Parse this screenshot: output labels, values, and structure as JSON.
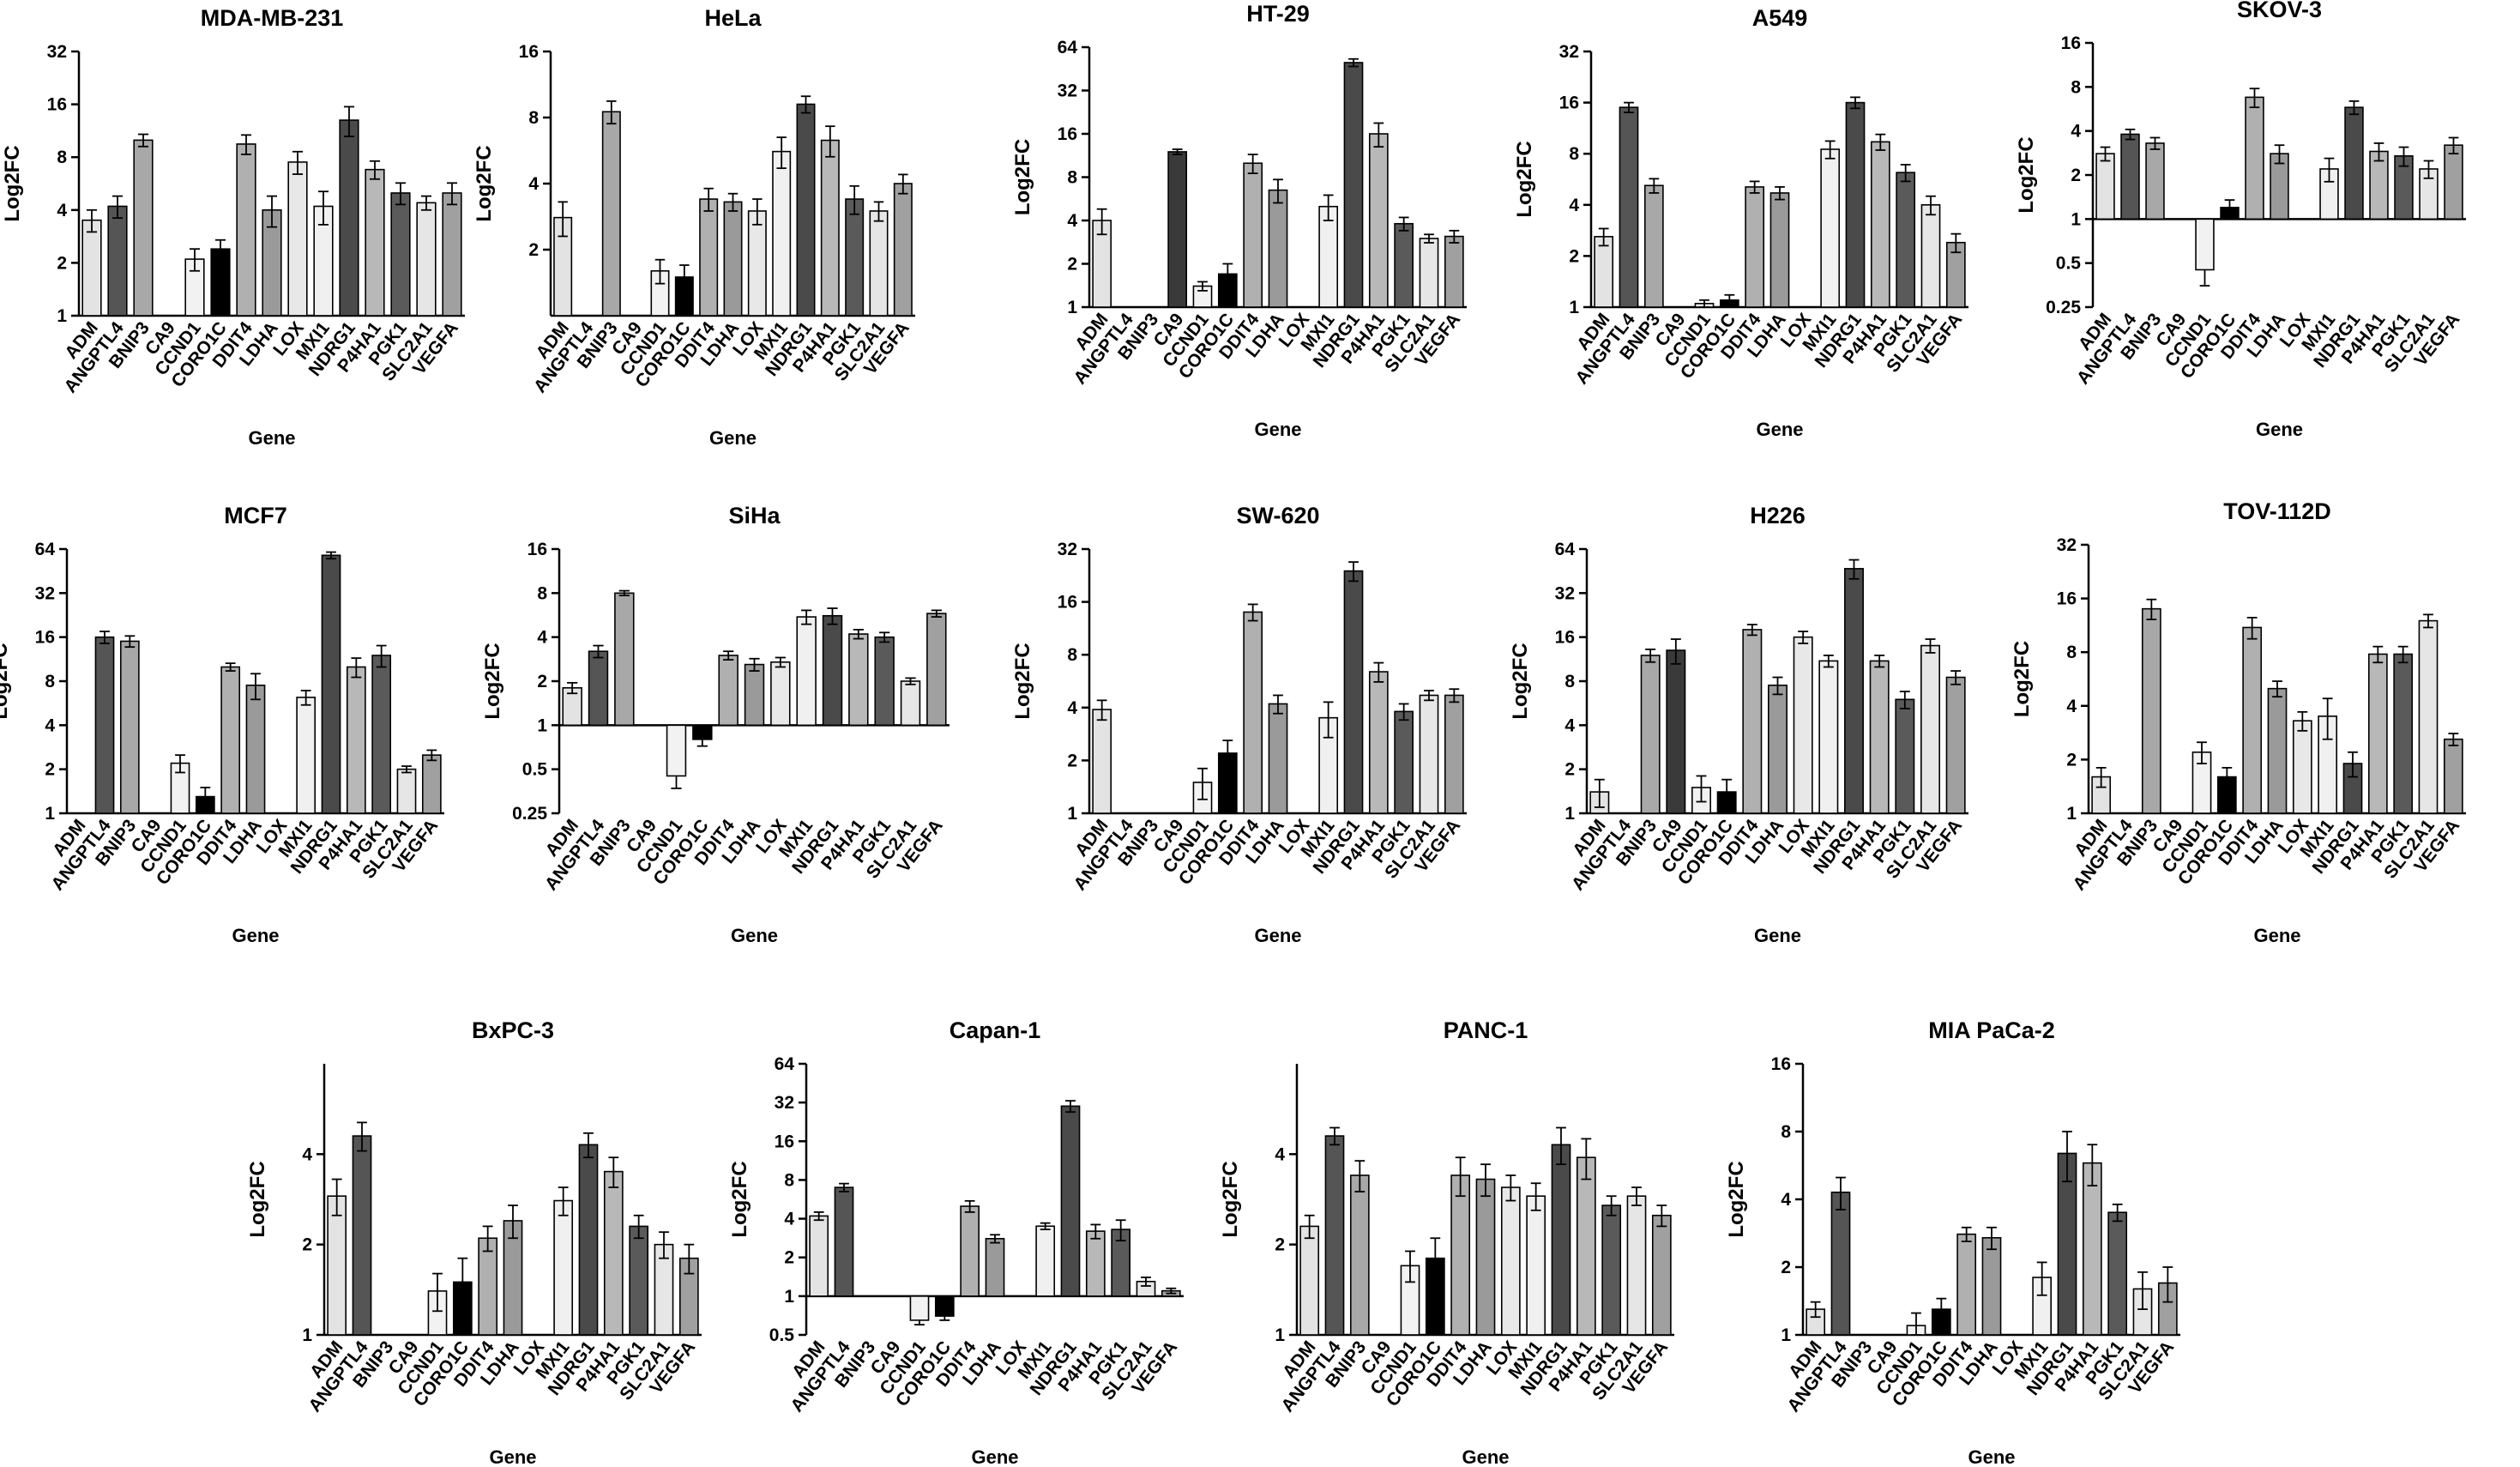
{
  "figure": {
    "gene_order": [
      "ADM",
      "ANGPTL4",
      "BNIP3",
      "CA9",
      "CCND1",
      "CORO1C",
      "DDIT4",
      "LDHA",
      "LOX",
      "MXI1",
      "NDRG1",
      "P4HA1",
      "PGK1",
      "SLC2A1",
      "VEGFA"
    ],
    "shades": {
      "ADM": "#e3e3e3",
      "ANGPTL4": "#555555",
      "BNIP3": "#a8a8a8",
      "CA9": "#3a3a3a",
      "CCND1": "#f2f2f2",
      "CORO1C": "#000000",
      "DDIT4": "#b0b0b0",
      "LDHA": "#9a9a9a",
      "LOX": "#e8e8e8",
      "MXI1": "#f0f0f0",
      "NDRG1": "#4a4a4a",
      "P4HA1": "#b8b8b8",
      "PGK1": "#5a5a5a",
      "SLC2A1": "#e6e6e6",
      "VEGFA": "#a0a0a0"
    },
    "bar_edge_color": "#000000"
  },
  "chart_data": [
    {
      "type": "bar",
      "title": "MDA-MB-231",
      "xlabel": "Gene",
      "ylabel": "Log2FC",
      "scale": "log2",
      "ylim": [
        1,
        32
      ],
      "yticks": [
        1,
        2,
        4,
        8,
        16,
        32
      ],
      "tick_labels": [
        "1",
        "2",
        "4",
        "8",
        "16",
        "32"
      ],
      "categories": [
        "ADM",
        "ANGPTL4",
        "BNIP3",
        "CA9",
        "CCND1",
        "CORO1C",
        "DDIT4",
        "LDHA",
        "LOX",
        "MXI1",
        "NDRG1",
        "P4HA1",
        "PGK1",
        "SLC2A1",
        "VEGFA"
      ],
      "values": [
        3.5,
        4.2,
        10,
        null,
        2.1,
        2.4,
        9.5,
        4.0,
        7.5,
        4.2,
        13,
        6.8,
        5.0,
        4.4,
        5.0
      ],
      "errors": [
        0.5,
        0.6,
        0.8,
        null,
        0.3,
        0.3,
        1.2,
        0.8,
        1.1,
        0.9,
        2.5,
        0.8,
        0.7,
        0.4,
        0.7
      ]
    },
    {
      "type": "bar",
      "title": "HeLa",
      "xlabel": "Gene",
      "ylabel": "Log2FC",
      "scale": "log2",
      "ylim": [
        1,
        16
      ],
      "yticks": [
        2,
        4,
        8,
        16
      ],
      "tick_labels": [
        "2",
        "4",
        "8",
        "16"
      ],
      "categories": [
        "ADM",
        "ANGPTL4",
        "BNIP3",
        "CA9",
        "CCND1",
        "CORO1C",
        "DDIT4",
        "LDHA",
        "LOX",
        "MXI1",
        "NDRG1",
        "P4HA1",
        "PGK1",
        "SLC2A1",
        "VEGFA"
      ],
      "values": [
        2.8,
        null,
        8.5,
        null,
        1.6,
        1.5,
        3.4,
        3.3,
        3.0,
        5.6,
        9.2,
        6.3,
        3.4,
        3.0,
        4.0
      ],
      "errors": [
        0.5,
        null,
        1.0,
        null,
        0.2,
        0.2,
        0.4,
        0.3,
        0.4,
        0.9,
        0.8,
        1.0,
        0.5,
        0.3,
        0.4
      ]
    },
    {
      "type": "bar",
      "title": "HT-29",
      "xlabel": "Gene",
      "ylabel": "Log2FC",
      "scale": "log2",
      "ylim": [
        1,
        64
      ],
      "yticks": [
        1,
        2,
        4,
        8,
        16,
        32,
        64
      ],
      "tick_labels": [
        "1",
        "2",
        "4",
        "8",
        "16",
        "32",
        "64"
      ],
      "categories": [
        "ADM",
        "ANGPTL4",
        "BNIP3",
        "CA9",
        "CCND1",
        "CORO1C",
        "DDIT4",
        "LDHA",
        "LOX",
        "MXI1",
        "NDRG1",
        "P4HA1",
        "PGK1",
        "SLC2A1",
        "VEGFA"
      ],
      "values": [
        4.0,
        null,
        null,
        12,
        1.4,
        1.7,
        10,
        6.5,
        null,
        5.0,
        50,
        16,
        3.8,
        3.0,
        3.1
      ],
      "errors": [
        0.8,
        null,
        null,
        0.5,
        0.1,
        0.3,
        1.5,
        1.2,
        null,
        1.0,
        3,
        3,
        0.4,
        0.2,
        0.3
      ]
    },
    {
      "type": "bar",
      "title": "A549",
      "xlabel": "Gene",
      "ylabel": "Log2FC",
      "scale": "log2",
      "ylim": [
        1,
        32
      ],
      "yticks": [
        1,
        2,
        4,
        8,
        16,
        32
      ],
      "tick_labels": [
        "1",
        "2",
        "4",
        "8",
        "16",
        "32"
      ],
      "categories": [
        "ADM",
        "ANGPTL4",
        "BNIP3",
        "CA9",
        "CCND1",
        "CORO1C",
        "DDIT4",
        "LDHA",
        "LOX",
        "MXI1",
        "NDRG1",
        "P4HA1",
        "PGK1",
        "SLC2A1",
        "VEGFA"
      ],
      "values": [
        2.6,
        15,
        5.2,
        null,
        1.05,
        1.1,
        5.1,
        4.7,
        null,
        8.5,
        16,
        9.4,
        6.2,
        4.0,
        2.4
      ],
      "errors": [
        0.3,
        1.0,
        0.5,
        null,
        0.05,
        0.08,
        0.4,
        0.4,
        null,
        1.0,
        1.2,
        1.0,
        0.7,
        0.5,
        0.3
      ]
    },
    {
      "type": "bar",
      "title": "SKOV-3",
      "xlabel": "Gene",
      "ylabel": "Log2FC",
      "scale": "log2",
      "ylim": [
        0.25,
        16
      ],
      "yticks": [
        0.25,
        0.5,
        1,
        2,
        4,
        8,
        16
      ],
      "tick_labels": [
        "0.25",
        "0.5",
        "1",
        "2",
        "4",
        "8",
        "16"
      ],
      "categories": [
        "ADM",
        "ANGPTL4",
        "BNIP3",
        "CA9",
        "CCND1",
        "CORO1C",
        "DDIT4",
        "LDHA",
        "LOX",
        "MXI1",
        "NDRG1",
        "P4HA1",
        "PGK1",
        "SLC2A1",
        "VEGFA"
      ],
      "values": [
        2.8,
        3.8,
        3.3,
        null,
        0.45,
        1.2,
        6.8,
        2.8,
        null,
        2.2,
        5.8,
        2.9,
        2.7,
        2.2,
        3.2
      ],
      "errors": [
        0.3,
        0.3,
        0.3,
        null,
        0.1,
        0.15,
        1.0,
        0.4,
        null,
        0.4,
        0.6,
        0.4,
        0.4,
        0.3,
        0.4
      ]
    },
    {
      "type": "bar",
      "title": "MCF7",
      "xlabel": "Gene",
      "ylabel": "Log2FC",
      "scale": "log2",
      "ylim": [
        1,
        64
      ],
      "yticks": [
        1,
        2,
        4,
        8,
        16,
        32,
        64
      ],
      "tick_labels": [
        "1",
        "2",
        "4",
        "8",
        "16",
        "32",
        "64"
      ],
      "categories": [
        "ADM",
        "ANGPTL4",
        "BNIP3",
        "CA9",
        "CCND1",
        "CORO1C",
        "DDIT4",
        "LDHA",
        "LOX",
        "MXI1",
        "NDRG1",
        "P4HA1",
        "PGK1",
        "SLC2A1",
        "VEGFA"
      ],
      "values": [
        null,
        16,
        15,
        null,
        2.2,
        1.3,
        10,
        7.5,
        null,
        6.2,
        58,
        10,
        12,
        2.0,
        2.5
      ],
      "errors": [
        null,
        1.5,
        1.3,
        null,
        0.3,
        0.2,
        0.6,
        1.5,
        null,
        0.7,
        3,
        1.5,
        2,
        0.1,
        0.2
      ]
    },
    {
      "type": "bar",
      "title": "SiHa",
      "xlabel": "Gene",
      "ylabel": "Log2FC",
      "scale": "log2",
      "ylim": [
        0.25,
        16
      ],
      "yticks": [
        0.25,
        0.5,
        1,
        2,
        4,
        8,
        16
      ],
      "tick_labels": [
        "0.25",
        "0.5",
        "1",
        "2",
        "4",
        "8",
        "16"
      ],
      "categories": [
        "ADM",
        "ANGPTL4",
        "BNIP3",
        "CA9",
        "CCND1",
        "CORO1C",
        "DDIT4",
        "LDHA",
        "LOX",
        "MXI1",
        "NDRG1",
        "P4HA1",
        "PGK1",
        "SLC2A1",
        "VEGFA"
      ],
      "values": [
        1.8,
        3.2,
        8,
        null,
        0.45,
        0.8,
        3.0,
        2.6,
        2.7,
        5.5,
        5.6,
        4.2,
        4.0,
        2.0,
        5.8
      ],
      "errors": [
        0.15,
        0.3,
        0.3,
        null,
        0.08,
        0.08,
        0.2,
        0.25,
        0.2,
        0.6,
        0.7,
        0.3,
        0.3,
        0.1,
        0.3
      ]
    },
    {
      "type": "bar",
      "title": "SW-620",
      "xlabel": "Gene",
      "ylabel": "Log2FC",
      "scale": "log2",
      "ylim": [
        1,
        32
      ],
      "yticks": [
        1,
        2,
        4,
        8,
        16,
        32
      ],
      "tick_labels": [
        "1",
        "2",
        "4",
        "8",
        "16",
        "32"
      ],
      "categories": [
        "ADM",
        "ANGPTL4",
        "BNIP3",
        "CA9",
        "CCND1",
        "CORO1C",
        "DDIT4",
        "LDHA",
        "LOX",
        "MXI1",
        "NDRG1",
        "P4HA1",
        "PGK1",
        "SLC2A1",
        "VEGFA"
      ],
      "values": [
        3.9,
        null,
        null,
        null,
        1.5,
        2.2,
        14,
        4.2,
        null,
        3.5,
        24,
        6.4,
        3.8,
        4.7,
        4.7
      ],
      "errors": [
        0.5,
        null,
        null,
        null,
        0.3,
        0.4,
        1.5,
        0.5,
        null,
        0.8,
        3,
        0.8,
        0.4,
        0.3,
        0.4
      ]
    },
    {
      "type": "bar",
      "title": "H226",
      "xlabel": "Gene",
      "ylabel": "Log2FC",
      "scale": "log2",
      "ylim": [
        1,
        64
      ],
      "yticks": [
        1,
        2,
        4,
        8,
        16,
        32,
        64
      ],
      "tick_labels": [
        "1",
        "2",
        "4",
        "8",
        "16",
        "32",
        "64"
      ],
      "categories": [
        "ADM",
        "ANGPTL4",
        "BNIP3",
        "CA9",
        "CCND1",
        "CORO1C",
        "DDIT4",
        "LDHA",
        "LOX",
        "MXI1",
        "NDRG1",
        "P4HA1",
        "PGK1",
        "SLC2A1",
        "VEGFA"
      ],
      "values": [
        1.4,
        null,
        12,
        13,
        1.5,
        1.4,
        18,
        7.5,
        16,
        11,
        47,
        11,
        6.0,
        14,
        8.5
      ],
      "errors": [
        0.3,
        null,
        1.2,
        2.5,
        0.3,
        0.3,
        1.5,
        1.0,
        1.5,
        1.0,
        7,
        1.0,
        0.8,
        1.5,
        0.9
      ]
    },
    {
      "type": "bar",
      "title": "TOV-112D",
      "xlabel": "Gene",
      "ylabel": "Log2FC",
      "scale": "log2",
      "ylim": [
        1,
        32
      ],
      "yticks": [
        1,
        2,
        4,
        8,
        16,
        32
      ],
      "tick_labels": [
        "1",
        "2",
        "4",
        "8",
        "16",
        "32"
      ],
      "categories": [
        "ADM",
        "ANGPTL4",
        "BNIP3",
        "CA9",
        "CCND1",
        "CORO1C",
        "DDIT4",
        "LDHA",
        "LOX",
        "MXI1",
        "NDRG1",
        "P4HA1",
        "PGK1",
        "SLC2A1",
        "VEGFA"
      ],
      "values": [
        1.6,
        null,
        14,
        null,
        2.2,
        1.6,
        11,
        5.0,
        3.3,
        3.5,
        1.9,
        7.8,
        7.8,
        12,
        2.6
      ],
      "errors": [
        0.2,
        null,
        1.8,
        null,
        0.3,
        0.2,
        1.5,
        0.5,
        0.4,
        0.9,
        0.3,
        0.8,
        0.8,
        1.0,
        0.2
      ]
    },
    {
      "type": "bar",
      "title": "BxPC-3",
      "xlabel": "Gene",
      "ylabel": "Log2FC",
      "scale": "log2",
      "ylim": [
        1,
        8
      ],
      "yticks": [
        1,
        2,
        4
      ],
      "tick_labels": [
        "1",
        "2",
        "4"
      ],
      "categories": [
        "ADM",
        "ANGPTL4",
        "BNIP3",
        "CA9",
        "CCND1",
        "CORO1C",
        "DDIT4",
        "LDHA",
        "LOX",
        "MXI1",
        "NDRG1",
        "P4HA1",
        "PGK1",
        "SLC2A1",
        "VEGFA"
      ],
      "values": [
        2.9,
        4.6,
        null,
        null,
        1.4,
        1.5,
        2.1,
        2.4,
        null,
        2.8,
        4.3,
        3.5,
        2.3,
        2.0,
        1.8
      ],
      "errors": [
        0.4,
        0.5,
        null,
        null,
        0.2,
        0.3,
        0.2,
        0.3,
        null,
        0.3,
        0.4,
        0.4,
        0.2,
        0.2,
        0.2
      ]
    },
    {
      "type": "bar",
      "title": "Capan-1",
      "xlabel": "Gene",
      "ylabel": "Log2FC",
      "scale": "log2",
      "ylim": [
        0.5,
        64
      ],
      "yticks": [
        0.5,
        1,
        2,
        4,
        8,
        16,
        32,
        64
      ],
      "tick_labels": [
        "0.5",
        "1",
        "2",
        "4",
        "8",
        "16",
        "32",
        "64"
      ],
      "categories": [
        "ADM",
        "ANGPTL4",
        "BNIP3",
        "CA9",
        "CCND1",
        "CORO1C",
        "DDIT4",
        "LDHA",
        "LOX",
        "MXI1",
        "NDRG1",
        "P4HA1",
        "PGK1",
        "SLC2A1",
        "VEGFA"
      ],
      "values": [
        4.2,
        7.0,
        null,
        null,
        0.65,
        0.7,
        5.0,
        2.8,
        null,
        3.5,
        30,
        3.2,
        3.3,
        1.3,
        1.1
      ],
      "errors": [
        0.3,
        0.5,
        null,
        null,
        0.05,
        0.05,
        0.5,
        0.2,
        null,
        0.2,
        3,
        0.4,
        0.6,
        0.1,
        0.05
      ]
    },
    {
      "type": "bar",
      "title": "PANC-1",
      "xlabel": "Gene",
      "ylabel": "Log2FC",
      "scale": "log2",
      "ylim": [
        1,
        8
      ],
      "yticks": [
        1,
        2,
        4
      ],
      "tick_labels": [
        "1",
        "2",
        "4"
      ],
      "categories": [
        "ADM",
        "ANGPTL4",
        "BNIP3",
        "CA9",
        "CCND1",
        "CORO1C",
        "DDIT4",
        "LDHA",
        "LOX",
        "MXI1",
        "NDRG1",
        "P4HA1",
        "PGK1",
        "SLC2A1",
        "VEGFA"
      ],
      "values": [
        2.3,
        4.6,
        3.4,
        null,
        1.7,
        1.8,
        3.4,
        3.3,
        3.1,
        2.9,
        4.3,
        3.9,
        2.7,
        2.9,
        2.5
      ],
      "errors": [
        0.2,
        0.3,
        0.4,
        null,
        0.2,
        0.3,
        0.5,
        0.4,
        0.3,
        0.3,
        0.6,
        0.6,
        0.2,
        0.2,
        0.2
      ]
    },
    {
      "type": "bar",
      "title": "MIA PaCa-2",
      "xlabel": "Gene",
      "ylabel": "Log2FC",
      "scale": "log2",
      "ylim": [
        1,
        16
      ],
      "yticks": [
        1,
        2,
        4,
        8,
        16
      ],
      "tick_labels": [
        "1",
        "2",
        "4",
        "8",
        "16"
      ],
      "categories": [
        "ADM",
        "ANGPTL4",
        "BNIP3",
        "CA9",
        "CCND1",
        "CORO1C",
        "DDIT4",
        "LDHA",
        "LOX",
        "MXI1",
        "NDRG1",
        "P4HA1",
        "PGK1",
        "SLC2A1",
        "VEGFA"
      ],
      "values": [
        1.3,
        4.3,
        null,
        null,
        1.1,
        1.3,
        2.8,
        2.7,
        null,
        1.8,
        6.4,
        5.8,
        3.5,
        1.6,
        1.7
      ],
      "errors": [
        0.1,
        0.7,
        null,
        null,
        0.15,
        0.15,
        0.2,
        0.3,
        null,
        0.3,
        1.6,
        1.2,
        0.3,
        0.3,
        0.3
      ]
    }
  ]
}
